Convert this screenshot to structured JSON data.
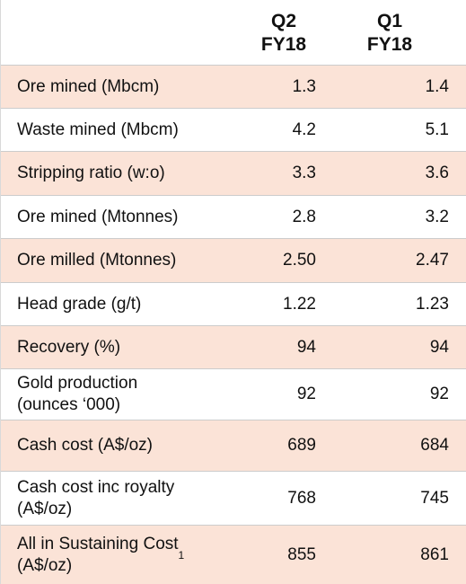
{
  "headers": {
    "q2": [
      "Q2",
      "FY18"
    ],
    "q1": [
      "Q1",
      "FY18"
    ]
  },
  "rows": [
    {
      "label": "Ore mined (Mbcm)",
      "q2": "1.3",
      "q1": "1.4"
    },
    {
      "label": "Waste mined (Mbcm)",
      "q2": "4.2",
      "q1": "5.1"
    },
    {
      "label": "Stripping ratio (w:o)",
      "q2": "3.3",
      "q1": "3.6"
    },
    {
      "label": "Ore mined (Mtonnes)",
      "q2": "2.8",
      "q1": "3.2"
    },
    {
      "label": "Ore milled (Mtonnes)",
      "q2": "2.50",
      "q1": "2.47"
    },
    {
      "label": "Head grade (g/t)",
      "q2": "1.22",
      "q1": "1.23"
    },
    {
      "label": "Recovery (%)",
      "q2": "94",
      "q1": "94"
    },
    {
      "label": "Gold production\n(ounces ‘000)",
      "q2": "92",
      "q1": "92"
    },
    {
      "label": "Cash cost (A$/oz)",
      "q2": "689",
      "q1": "684"
    },
    {
      "label": "Cash cost inc royalty\n(A$/oz)",
      "q2": "768",
      "q1": "745"
    },
    {
      "label": "All in Sustaining Cost\n(A$/oz)",
      "footnote": "1",
      "q2": "855",
      "q1": "861"
    }
  ]
}
